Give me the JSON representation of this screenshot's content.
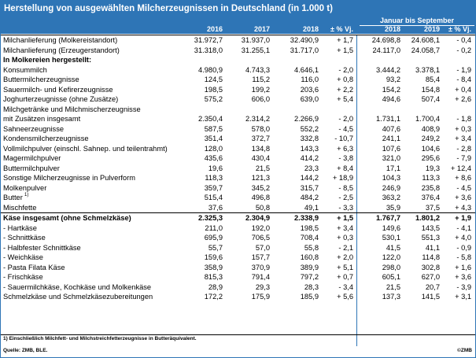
{
  "title": "Herstellung von ausgewählten Milcherzeugnissen in Deutschland (in 1.000 t)",
  "header": {
    "subtitle": "Januar bis September",
    "columns": [
      "2016",
      "2017",
      "2018",
      "± % Vj.",
      "2018",
      "2019",
      "± % Vj."
    ]
  },
  "rows": [
    {
      "label": "Milchanlieferung (Molkereistandort)",
      "v": [
        "31.972,7",
        "31.937,0",
        "32.490,9",
        "+ 1,7",
        "24.698,8",
        "24.608,1",
        "- 0,4"
      ],
      "bold": false
    },
    {
      "label": "Milchanlieferung (Erzeugerstandort)",
      "v": [
        "31.318,0",
        "31.255,1",
        "31.717,0",
        "+ 1,5",
        "24.117,0",
        "24.058,7",
        "- 0,2"
      ],
      "bold": false
    },
    {
      "label": "In Molkereien hergestellt:",
      "v": [
        "",
        "",
        "",
        "",
        "",
        "",
        ""
      ],
      "bold": true
    },
    {
      "label": "Konsummilch",
      "v": [
        "4.980,9",
        "4.743,3",
        "4.646,1",
        "- 2,0",
        "3.444,2",
        "3.378,1",
        "- 1,9"
      ],
      "bold": false
    },
    {
      "label": "Buttermilcherzeugnisse",
      "v": [
        "124,5",
        "115,2",
        "116,0",
        "+ 0,8",
        "93,2",
        "85,4",
        "- 8,4"
      ],
      "bold": false
    },
    {
      "label": "Sauermilch- und Kefirerzeugnisse",
      "v": [
        "198,5",
        "199,2",
        "203,6",
        "+ 2,2",
        "154,2",
        "154,8",
        "+ 0,4"
      ],
      "bold": false
    },
    {
      "label": "Joghurterzeugnisse (ohne Zusätze)",
      "v": [
        "575,2",
        "606,0",
        "639,0",
        "+ 5,4",
        "494,6",
        "507,4",
        "+ 2,6"
      ],
      "bold": false
    },
    {
      "label": "Milchgetränke und Milchmischerzeugnisse",
      "v": [
        "",
        "",
        "",
        "",
        "",
        "",
        ""
      ],
      "bold": false
    },
    {
      "label": "mit Zusätzen insgesamt",
      "v": [
        "2.350,4",
        "2.314,2",
        "2.266,9",
        "- 2,0",
        "1.731,1",
        "1.700,4",
        "- 1,8"
      ],
      "bold": false
    },
    {
      "label": "Sahneerzeugnisse",
      "v": [
        "587,5",
        "578,0",
        "552,2",
        "- 4,5",
        "407,6",
        "408,9",
        "+ 0,3"
      ],
      "bold": false
    },
    {
      "label": "Kondensmilcherzeugnisse",
      "v": [
        "351,4",
        "372,7",
        "332,8",
        "- 10,7",
        "241,1",
        "249,2",
        "+ 3,4"
      ],
      "bold": false
    },
    {
      "label": "Vollmilchpulver (einschl. Sahnep. und teilentrahmt)",
      "v": [
        "128,0",
        "134,8",
        "143,3",
        "+ 6,3",
        "107,6",
        "104,6",
        "- 2,8"
      ],
      "bold": false
    },
    {
      "label": "Magermilchpulver",
      "v": [
        "435,6",
        "430,4",
        "414,2",
        "- 3,8",
        "321,0",
        "295,6",
        "- 7,9"
      ],
      "bold": false
    },
    {
      "label": "Buttermilchpulver",
      "v": [
        "19,6",
        "21,5",
        "23,3",
        "+ 8,4",
        "17,1",
        "19,3",
        "+ 12,4"
      ],
      "bold": false
    },
    {
      "label": "Sonstige Milcherzeugnisse in Pulverform",
      "v": [
        "118,3",
        "121,3",
        "144,2",
        "+ 18,9",
        "104,3",
        "113,3",
        "+ 8,6"
      ],
      "bold": false
    },
    {
      "label": "Molkenpulver",
      "v": [
        "359,7",
        "345,2",
        "315,7",
        "- 8,5",
        "246,9",
        "235,8",
        "- 4,5"
      ],
      "bold": false
    },
    {
      "label": "Butter",
      "sup": "1)",
      "v": [
        "515,4",
        "496,8",
        "484,2",
        "- 2,5",
        "363,2",
        "376,4",
        "+ 3,6"
      ],
      "bold": false
    },
    {
      "label": "Mischfette",
      "v": [
        "37,6",
        "50,8",
        "49,1",
        "- 3,3",
        "35,9",
        "37,5",
        "+ 4,3"
      ],
      "bold": false
    },
    {
      "label": "Käse insgesamt (ohne Schmelzkäse)",
      "v": [
        "2.325,3",
        "2.304,9",
        "2.338,9",
        "+ 1,5",
        "1.767,7",
        "1.801,2",
        "+ 1,9"
      ],
      "bold": true
    },
    {
      "label": "- Hartkäse",
      "v": [
        "211,0",
        "192,0",
        "198,5",
        "+ 3,4",
        "149,6",
        "143,5",
        "- 4,1"
      ],
      "bold": false
    },
    {
      "label": "- Schnittkäse",
      "v": [
        "695,9",
        "706,5",
        "708,4",
        "+ 0,3",
        "530,1",
        "551,3",
        "+ 4,0"
      ],
      "bold": false
    },
    {
      "label": "- Halbfester Schnittkäse",
      "v": [
        "55,7",
        "57,0",
        "55,8",
        "- 2,1",
        "41,5",
        "41,1",
        "- 0,9"
      ],
      "bold": false
    },
    {
      "label": "- Weichkäse",
      "v": [
        "159,6",
        "157,7",
        "160,8",
        "+ 2,0",
        "122,0",
        "114,8",
        "- 5,8"
      ],
      "bold": false
    },
    {
      "label": "- Pasta Filata Käse",
      "v": [
        "358,9",
        "370,9",
        "389,9",
        "+ 5,1",
        "298,0",
        "302,8",
        "+ 1,6"
      ],
      "bold": false
    },
    {
      "label": "- Frischkäse",
      "v": [
        "815,3",
        "791,4",
        "797,2",
        "+ 0,7",
        "605,1",
        "627,0",
        "+ 3,6"
      ],
      "bold": false
    },
    {
      "label": "- Sauermilchkäse, Kochkäse und Molkenkäse",
      "v": [
        "28,9",
        "29,3",
        "28,3",
        "- 3,4",
        "21,5",
        "20,7",
        "- 3,9"
      ],
      "bold": false
    },
    {
      "label": "Schmelzkäse und Schmelzkäsezubereitungen",
      "v": [
        "172,2",
        "175,9",
        "185,9",
        "+ 5,6",
        "137,3",
        "141,5",
        "+ 3,1"
      ],
      "bold": false
    }
  ],
  "footnote": "1) Einschließlich Milchfett- und Milchstreichfetterzeugnisse in Butteräquivalent.",
  "source": "Quelle: ZMB, BLE.",
  "copyright": "©ZMB",
  "colors": {
    "header_bg": "#2e75b6",
    "header_text": "#ffffff"
  }
}
